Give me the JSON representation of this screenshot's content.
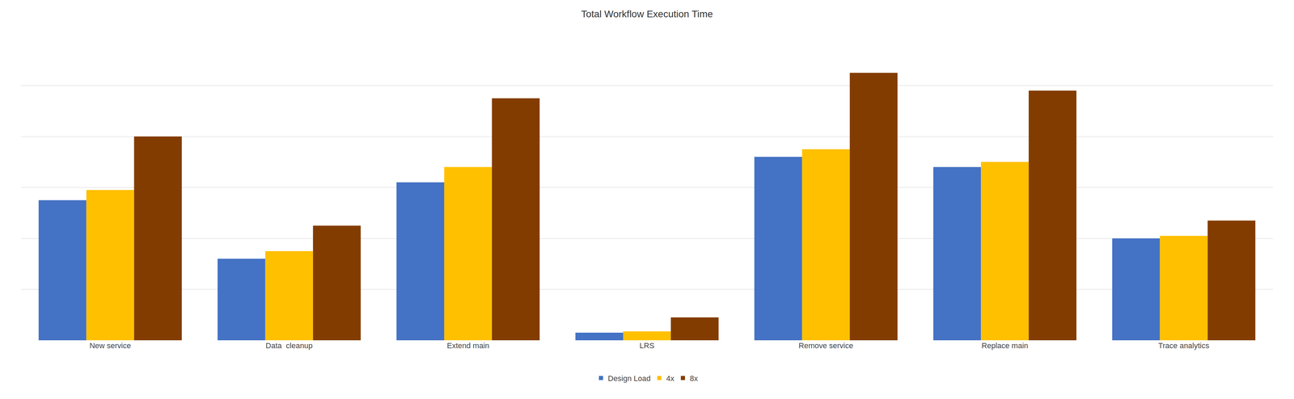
{
  "chart_data": {
    "type": "bar",
    "title": "Total Workflow Execution Time",
    "categories": [
      "New service",
      "Data  cleanup",
      "Extend main",
      "LRS",
      "Remove service",
      "Replace main",
      "Trace analytics"
    ],
    "series": [
      {
        "name": "Design Load",
        "color": "#4472C4",
        "values": [
          5.5,
          3.2,
          6.2,
          0.3,
          7.2,
          6.8,
          4.0
        ]
      },
      {
        "name": "4x",
        "color": "#FFC000",
        "values": [
          5.9,
          3.5,
          6.8,
          0.35,
          7.5,
          7.0,
          4.1
        ]
      },
      {
        "name": "8x",
        "color": "#833C00",
        "values": [
          8.0,
          4.5,
          9.5,
          0.9,
          10.5,
          9.8,
          4.7
        ]
      }
    ],
    "ylim": [
      0,
      12
    ],
    "yticks": [
      0,
      2,
      4,
      6,
      8,
      10,
      12
    ],
    "grid": true,
    "legend": "bottom",
    "tick_labels": "x"
  }
}
